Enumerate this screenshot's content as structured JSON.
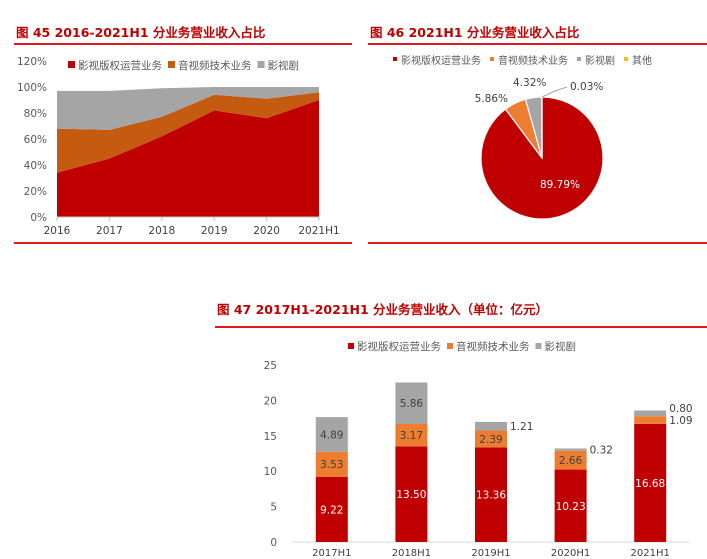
{
  "colors": {
    "red": "#c00000",
    "dark_orange": "#c55a11",
    "orange": "#ed7d31",
    "gray": "#a5a5a5",
    "yellow": "#ffc000"
  },
  "chart_data": [
    {
      "type": "area",
      "title": "图 45 2016-2021H1 分业务营业收入占比",
      "categories": [
        "2016",
        "2017",
        "2018",
        "2019",
        "2020",
        "2021H1"
      ],
      "ylim": [
        0,
        120
      ],
      "yticks": [
        "0%",
        "20%",
        "40%",
        "60%",
        "80%",
        "100%",
        "120%"
      ],
      "stacked": true,
      "legend_position": "top",
      "series": [
        {
          "name": "影视版权运营业务",
          "values": [
            34,
            45,
            62,
            82,
            76,
            90
          ]
        },
        {
          "name": "音视频技术业务",
          "values": [
            34,
            22,
            15,
            12,
            15,
            6
          ]
        },
        {
          "name": "影视剧",
          "values": [
            29,
            30,
            22,
            6,
            9,
            4
          ]
        }
      ]
    },
    {
      "type": "pie",
      "title": "图 46 2021H1 分业务营业收入占比",
      "legend_position": "top",
      "slices": [
        {
          "name": "影视版权运营业务",
          "value": 89.79,
          "label": "89.79%"
        },
        {
          "name": "音视频技术业务",
          "value": 5.86,
          "label": "5.86%"
        },
        {
          "name": "影视剧",
          "value": 4.32,
          "label": "4.32%"
        },
        {
          "name": "其他",
          "value": 0.03,
          "label": "0.03%"
        }
      ]
    },
    {
      "type": "bar",
      "stacked": true,
      "title": "图 47 2017H1-2021H1 分业务营业收入（单位：亿元）",
      "categories": [
        "2017H1",
        "2018H1",
        "2019H1",
        "2020H1",
        "2021H1"
      ],
      "ylim": [
        0,
        25
      ],
      "yticks": [
        "0",
        "5",
        "10",
        "15",
        "20",
        "25"
      ],
      "legend_position": "top",
      "series": [
        {
          "name": "影视版权运营业务",
          "values": [
            9.22,
            13.5,
            13.36,
            10.23,
            16.68
          ],
          "labels": [
            "9.22",
            "13.50",
            "13.36",
            "10.23",
            "16.68"
          ]
        },
        {
          "name": "音视频技术业务",
          "values": [
            3.53,
            3.17,
            2.39,
            2.66,
            1.09
          ],
          "labels": [
            "3.53",
            "3.17",
            "2.39",
            "2.66",
            "1.09"
          ]
        },
        {
          "name": "影视剧",
          "values": [
            4.89,
            5.86,
            1.21,
            0.32,
            0.8
          ],
          "labels": [
            "4.89",
            "5.86",
            "1.21",
            "0.32",
            "0.80"
          ]
        }
      ]
    }
  ]
}
